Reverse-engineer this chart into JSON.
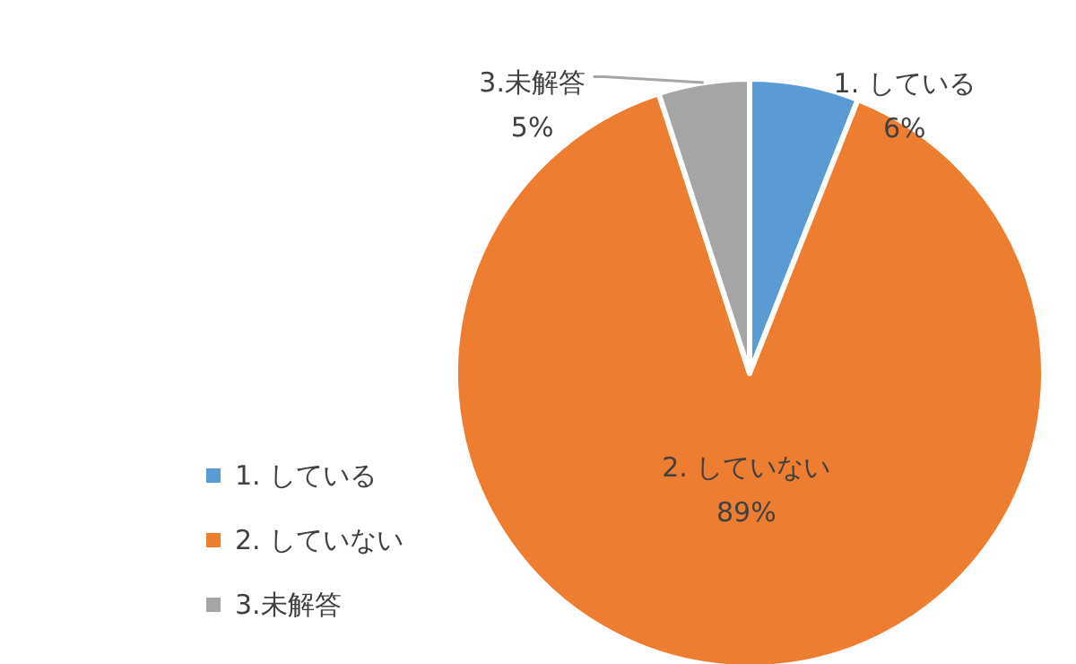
{
  "chart_data": {
    "type": "pie",
    "categories": [
      "1. している",
      "2. していない",
      "3.未解答"
    ],
    "values": [
      6,
      89,
      5
    ],
    "colors": [
      "#5b9bd5",
      "#ed7d31",
      "#a5a5a5"
    ],
    "value_labels": [
      "6%",
      "89%",
      "5%"
    ],
    "legend": "bottom left"
  }
}
